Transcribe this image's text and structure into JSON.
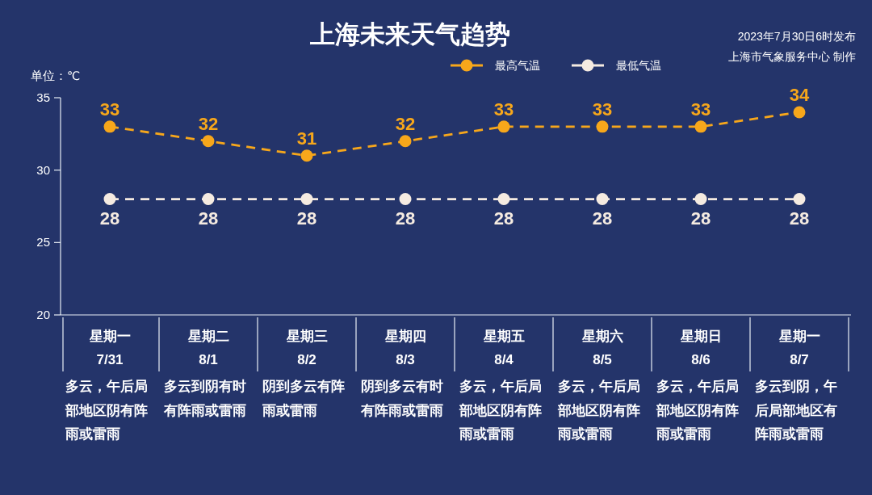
{
  "chart_data": {
    "type": "line",
    "title": "上海未来天气趋势",
    "ylabel": "单位：℃",
    "categories": [
      "星期一\n7/31\n多云，午后局部地区阴有阵雨或雷雨",
      "星期二\n8/1\n多云到阴有时有阵雨或雷雨",
      "星期三\n8/2\n阴到多云有阵雨或雷雨",
      "星期四\n8/3\n阴到多云有时有阵雨或雷雨",
      "星期五\n8/4\n多云，午后局部地区阴有阵雨或雷雨",
      "星期六\n8/5\n多云，午后局部地区阴有阵雨或雷雨",
      "星期日\n8/6\n多云，午后局部地区阴有阵雨或雷雨",
      "星期一\n8/7\n多云到阴，午后局部地区有阵雨或雷雨"
    ],
    "series": [
      {
        "name": "最高气温",
        "color": "#f7a71b",
        "values": [
          33,
          32,
          31,
          32,
          33,
          33,
          33,
          34
        ]
      },
      {
        "name": "最低气温",
        "color": "#f5ebe1",
        "values": [
          28,
          28,
          28,
          28,
          28,
          28,
          28,
          28
        ]
      }
    ],
    "ylim": [
      20,
      35
    ],
    "yticks": [
      20,
      25,
      30,
      35
    ],
    "data_labels": true,
    "legend": "top right",
    "marker": "circle",
    "line_style": "dashed",
    "annotations": [
      "2023年7月30日6时发布",
      "上海市气象服务中心 制作"
    ]
  }
}
